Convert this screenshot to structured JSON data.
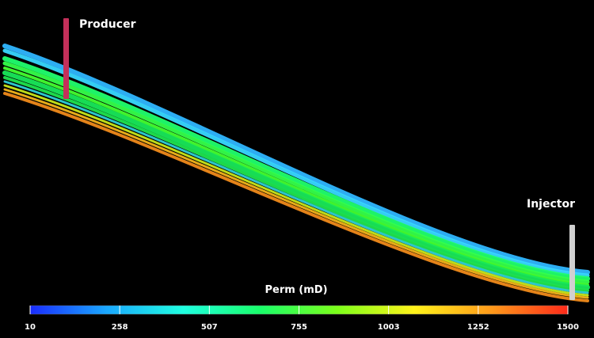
{
  "wells": {
    "producer": {
      "label": "Producer",
      "color": "#c4305a"
    },
    "injector": {
      "label": "Injector",
      "color": "#d0d0d0"
    }
  },
  "colorbar": {
    "title": "Perm (mD)",
    "ticks": [
      "10",
      "258",
      "507",
      "755",
      "1003",
      "1252",
      "1500"
    ],
    "stops": [
      "#1a2cff",
      "#1aa8ff",
      "#1fffe0",
      "#19ff6a",
      "#7cff1a",
      "#fff21a",
      "#ff9a1a",
      "#ff2a1a"
    ]
  },
  "layers": [
    {
      "name": "layer-top-cyan",
      "color": "#2fb6ff"
    },
    {
      "name": "layer-cyan-2",
      "color": "#38d8ff"
    },
    {
      "name": "layer-green-1",
      "color": "#20ff6e"
    },
    {
      "name": "layer-green-2",
      "color": "#35ff4a"
    },
    {
      "name": "layer-green-3",
      "color": "#44ff2f"
    },
    {
      "name": "layer-green-4",
      "color": "#18e85a"
    },
    {
      "name": "layer-green-5",
      "color": "#1fe44e"
    },
    {
      "name": "layer-cyan-3",
      "color": "#2fd0d8"
    },
    {
      "name": "layer-yellow-1",
      "color": "#c8e81a"
    },
    {
      "name": "layer-yellow-2",
      "color": "#f3b41a"
    },
    {
      "name": "layer-orange-1",
      "color": "#f08a1a"
    }
  ]
}
